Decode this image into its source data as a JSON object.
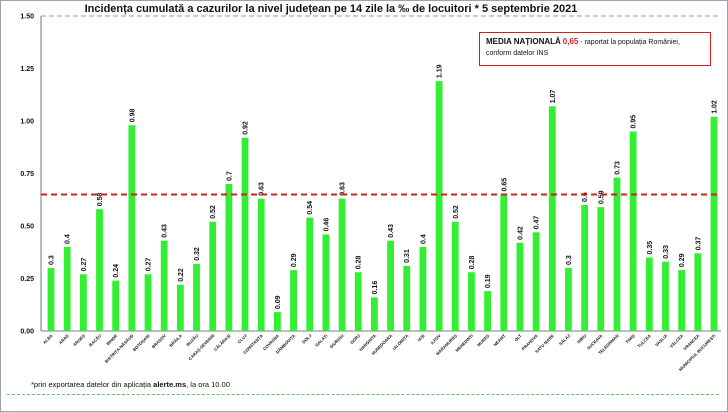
{
  "chart_data": {
    "type": "bar",
    "title": "Incidența cumulată a cazurilor la nivel județean pe 14 zile la ‰ de locuitori * 5 septembrie 2021",
    "xlabel": "",
    "ylabel": "",
    "ylim": [
      0,
      1.5
    ],
    "yticks": [
      "0.00",
      "0.25",
      "0.50",
      "0.75",
      "1.00",
      "1.25",
      "1.50"
    ],
    "grid": false,
    "bar_color": "#33ee33",
    "reference_line": {
      "value": 0.65,
      "color": "#d21f1f",
      "style": "dashed"
    },
    "categories": [
      "ALBA",
      "ARAD",
      "ARGEȘ",
      "BACĂU",
      "BIHOR",
      "BISTRIȚA-NĂSĂUD",
      "BOTOȘANI",
      "BRAȘOV",
      "BRĂILA",
      "BUZĂU",
      "CARAȘ-SEVERIN",
      "CĂLĂRAȘI",
      "CLUJ",
      "CONSTANȚA",
      "COVASNA",
      "DÂMBOVIȚA",
      "DOLJ",
      "GALAȚI",
      "GIURGIU",
      "GORJ",
      "HARGHITA",
      "HUNEDOARA",
      "IALOMIȚA",
      "IAȘI",
      "ILFOV",
      "MARAMUREȘ",
      "MEHEDINȚI",
      "MUREȘ",
      "NEAMȚ",
      "OLT",
      "PRAHOVA",
      "SATU MARE",
      "SĂLAJ",
      "SIBIU",
      "SUCEAVA",
      "TELEORMAN",
      "TIMIȘ",
      "TULCEA",
      "VASLUI",
      "VÂLCEA",
      "VRANCEA",
      "MUNICIPIUL BUCUREȘTI"
    ],
    "value_labels": [
      "0.3",
      "0.4",
      "0.27",
      "0.58",
      "0.24",
      "0.98",
      "0.27",
      "0.43",
      "0.22",
      "0.32",
      "0.52",
      "0.7",
      "0.92",
      "0.63",
      "0.09",
      "0.29",
      "0.54",
      "0.46",
      "0.63",
      "0.28",
      "0.16",
      "0.43",
      "0.31",
      "0.4",
      "1.19",
      "0.52",
      "0.28",
      "0.19",
      "0.65",
      "0.42",
      "0.47",
      "1.07",
      "0.3",
      "0.6",
      "0.59",
      "0.73",
      "0.95",
      "0.35",
      "0.33",
      "0.29",
      "0.37",
      "1.02"
    ],
    "values": [
      0.3,
      0.4,
      0.27,
      0.58,
      0.24,
      0.98,
      0.27,
      0.43,
      0.22,
      0.32,
      0.52,
      0.7,
      0.92,
      0.63,
      0.09,
      0.29,
      0.54,
      0.46,
      0.63,
      0.28,
      0.16,
      0.43,
      0.31,
      0.4,
      1.19,
      0.52,
      0.28,
      0.19,
      0.65,
      0.42,
      0.47,
      1.07,
      0.3,
      0.6,
      0.59,
      0.73,
      0.95,
      0.35,
      0.33,
      0.29,
      0.37,
      1.02
    ]
  },
  "note": {
    "label": "MEDIA NAȚIONALĂ",
    "value": "0,65",
    "text1": " - raportat la populația României,",
    "text2": "conform datelor INS"
  },
  "footnote": {
    "text1": "*prin exportarea datelor din aplicația ",
    "source": "alerte.ms",
    "text2": ", la ora 10.00"
  }
}
